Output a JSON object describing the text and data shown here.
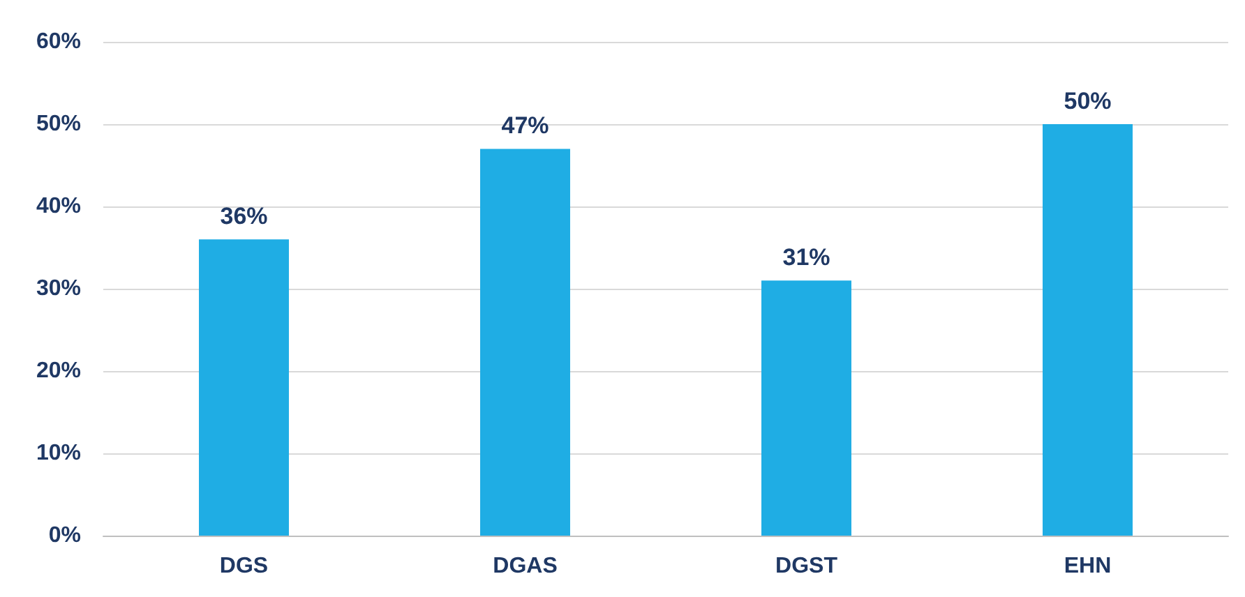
{
  "chart_data": {
    "type": "bar",
    "categories": [
      "DGS",
      "DGAS",
      "DGST",
      "EHN"
    ],
    "values": [
      36,
      47,
      31,
      50
    ],
    "value_labels": [
      "36%",
      "47%",
      "31%",
      "50%"
    ],
    "color": "#1fade4",
    "ylim": [
      0,
      60
    ],
    "yticks": [
      {
        "value": 0,
        "label": "0%"
      },
      {
        "value": 10,
        "label": "10%"
      },
      {
        "value": 20,
        "label": "20%"
      },
      {
        "value": 30,
        "label": "30%"
      },
      {
        "value": 40,
        "label": "40%"
      },
      {
        "value": 50,
        "label": "50%"
      },
      {
        "value": 60,
        "label": "60%"
      }
    ],
    "grid": "y"
  }
}
